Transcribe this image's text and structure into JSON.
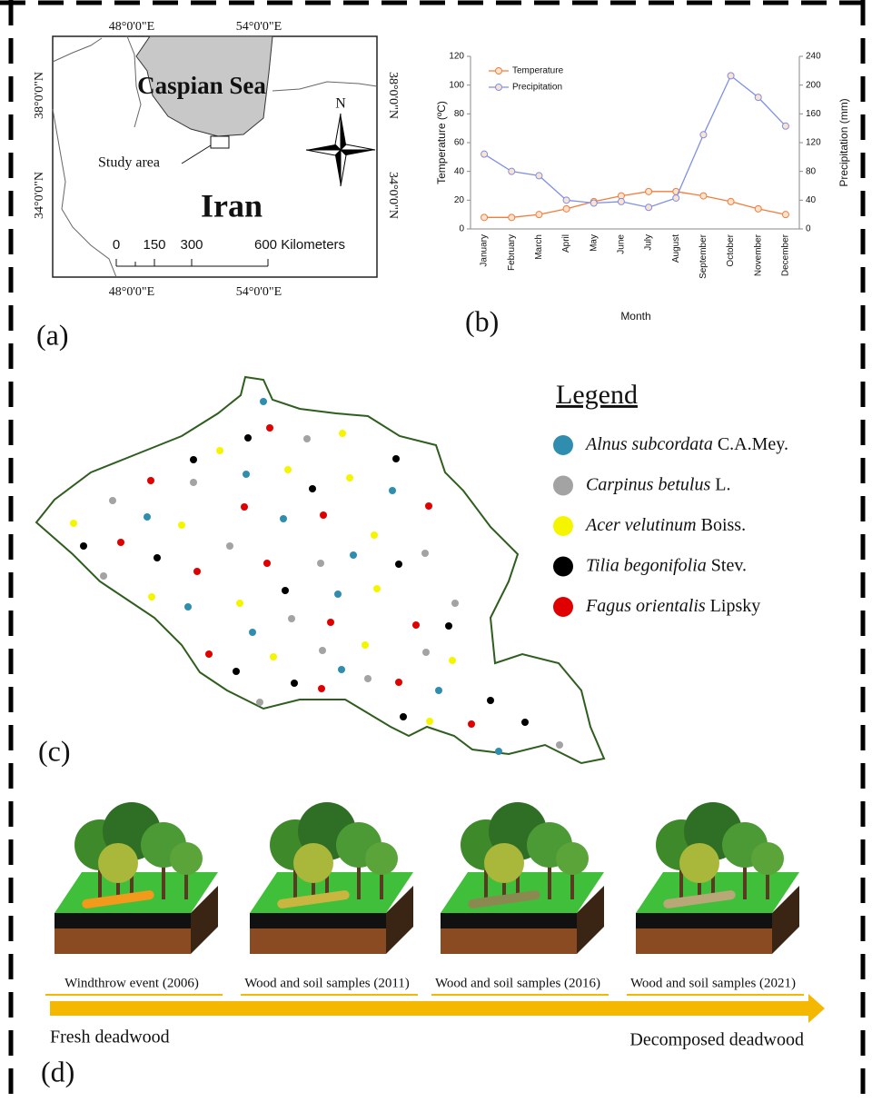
{
  "map_a": {
    "panel_label": "(a)",
    "lon_labels": [
      "48°0'0\"E",
      "54°0'0\"E"
    ],
    "lat_labels": [
      "38°0'0\"N",
      "34°0'0\"N"
    ],
    "sea": "Caspian Sea",
    "country": "Iran",
    "study_area": "Study area",
    "north": "N",
    "scale_labels": [
      "0",
      "150",
      "300",
      "600 Kilometers"
    ]
  },
  "chart_data": {
    "type": "line",
    "panel_label": "(b)",
    "x_label": "Month",
    "y_label": "Temperature (ºC)",
    "y2_label": "Precipitation (mm)",
    "categories": [
      "January",
      "February",
      "March",
      "April",
      "May",
      "June",
      "July",
      "August",
      "September",
      "October",
      "November",
      "December"
    ],
    "series": [
      {
        "name": "Temperature",
        "color": "#f07d3c",
        "values": [
          8,
          8,
          10,
          14,
          19,
          23,
          26,
          26,
          23,
          19,
          14,
          10
        ]
      },
      {
        "name": "Precipitation",
        "color": "#7f8fe6",
        "axis": "y2",
        "values": [
          104,
          80,
          74,
          40,
          36,
          38,
          30,
          43,
          131,
          213,
          183,
          143
        ]
      }
    ],
    "ylim": [
      0,
      120
    ],
    "yticks": [
      0,
      20,
      40,
      60,
      80,
      100,
      120
    ],
    "y2lim": [
      0,
      240
    ],
    "y2ticks": [
      0,
      40,
      80,
      120,
      160,
      200,
      240
    ]
  },
  "plots_c": {
    "panel_label": "(c)",
    "legend_title": "Legend",
    "species": [
      {
        "name": "Alnus subcordata",
        "author": "C.A.Mey.",
        "color": "#2f8db0"
      },
      {
        "name": "Carpinus betulus",
        "author": "L.",
        "color": "#a3a3a3"
      },
      {
        "name": "Acer velutinum",
        "author": "Boiss.",
        "color": "#f5f500"
      },
      {
        "name": "Tilia begonifolia",
        "author": "Stev.",
        "color": "#000000"
      },
      {
        "name": "Fagus orientalis",
        "author": "Lipsky",
        "color": "#e00000"
      }
    ]
  },
  "timeline_d": {
    "panel_label": "(d)",
    "stages": [
      "Windthrow event (2006)",
      "Wood and soil samples (2011)",
      "Wood and soil samples (2016)",
      "Wood and soil samples (2021)"
    ],
    "start": "Fresh deadwood",
    "end": "Decomposed deadwood"
  }
}
